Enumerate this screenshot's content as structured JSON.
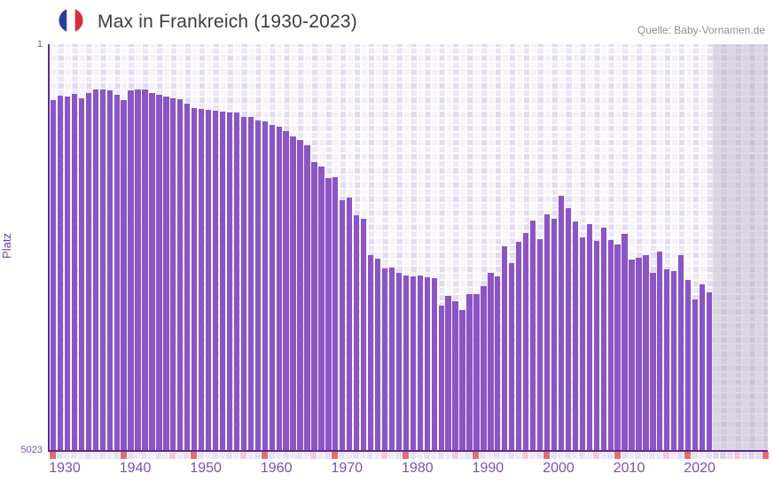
{
  "header": {
    "title": "Max in Frankreich (1930-2023)",
    "source": "Quelle: Baby-Vornamen.de"
  },
  "axes": {
    "y_label": "Platz",
    "y_tick_top": "1",
    "y_tick_bottom": "5023",
    "x_ticks": [
      "1930",
      "1940",
      "1950",
      "1960",
      "1970",
      "1980",
      "1990",
      "2000",
      "2010",
      "2020"
    ]
  },
  "chart_data": {
    "type": "bar",
    "title": "Max in Frankreich (1930-2023)",
    "xlabel": "",
    "ylabel": "Platz",
    "y_axis": {
      "min": 1,
      "max": 5023,
      "inverted": true,
      "note": "rank 1 at top, bars grow downward-start from bottom"
    },
    "x_range": [
      1930,
      2023
    ],
    "legend_position": "none",
    "grid": true,
    "years": [
      1930,
      1931,
      1932,
      1933,
      1934,
      1935,
      1936,
      1937,
      1938,
      1939,
      1940,
      1941,
      1942,
      1943,
      1944,
      1945,
      1946,
      1947,
      1948,
      1949,
      1950,
      1951,
      1952,
      1953,
      1954,
      1955,
      1956,
      1957,
      1958,
      1959,
      1960,
      1961,
      1962,
      1963,
      1964,
      1965,
      1966,
      1967,
      1968,
      1969,
      1970,
      1971,
      1972,
      1973,
      1974,
      1975,
      1976,
      1977,
      1978,
      1979,
      1980,
      1981,
      1982,
      1983,
      1984,
      1985,
      1986,
      1987,
      1988,
      1989,
      1990,
      1991,
      1992,
      1993,
      1994,
      1995,
      1996,
      1997,
      1998,
      1999,
      2000,
      2001,
      2002,
      2003,
      2004,
      2005,
      2006,
      2007,
      2008,
      2009,
      2010,
      2011,
      2012,
      2013,
      2014,
      2015,
      2016,
      2017,
      2018,
      2019,
      2020,
      2021,
      2022,
      2023
    ],
    "ranks": [
      691,
      640,
      648,
      615,
      666,
      607,
      560,
      557,
      571,
      623,
      695,
      571,
      557,
      563,
      601,
      626,
      648,
      666,
      681,
      736,
      790,
      801,
      812,
      823,
      834,
      845,
      845,
      900,
      900,
      944,
      955,
      999,
      1021,
      1076,
      1141,
      1185,
      1251,
      1459,
      1514,
      1657,
      1646,
      1931,
      1898,
      2117,
      2161,
      2611,
      2654,
      2775,
      2764,
      2830,
      2863,
      2874,
      2863,
      2885,
      2896,
      3236,
      3115,
      3181,
      3290,
      3093,
      3093,
      2994,
      2830,
      2874,
      2501,
      2709,
      2446,
      2336,
      2183,
      2413,
      2106,
      2161,
      1876,
      2029,
      2194,
      2391,
      2227,
      2435,
      2271,
      2424,
      2479,
      2347,
      2665,
      2643,
      2611,
      2830,
      2567,
      2786,
      2808,
      2611,
      2918,
      3159,
      2973,
      3071
    ]
  },
  "heat_strip": {
    "count": 102,
    "red_indices": [
      0,
      10,
      20,
      30,
      40,
      50,
      60,
      70,
      80,
      90,
      101
    ],
    "pink_indices": [
      17,
      27,
      37,
      47,
      57,
      67,
      77,
      87,
      97
    ],
    "dark_from_index": 94
  },
  "colors": {
    "bar": "#8c55c4",
    "axis": "#5b2b90",
    "plot_background": "#f1ebf9",
    "future_overlay": "rgba(168,160,186,0.38)",
    "tick_text": "#7c50b2",
    "title_text": "#3d3d3d",
    "source_text": "#8f8f8f",
    "strip_red": "#e26e72",
    "strip_pink": "#f2c9d6",
    "strip_light_a": "#efe9f8",
    "strip_light_b": "#e7e0f2",
    "strip_dark_a": "#e2dcec",
    "strip_dark_b": "#dbd4e6",
    "flag_blue": "#2e3d92",
    "flag_white": "#ffffff",
    "flag_red": "#da2c3c"
  }
}
